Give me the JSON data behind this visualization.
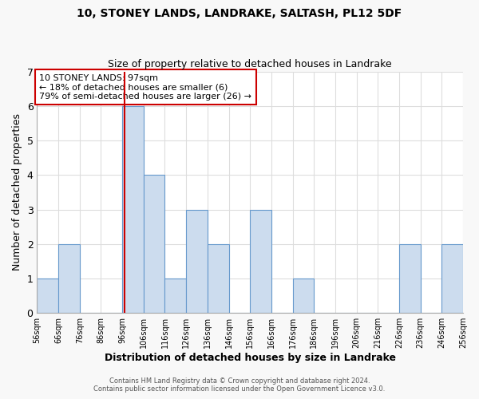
{
  "title": "10, STONEY LANDS, LANDRAKE, SALTASH, PL12 5DF",
  "subtitle": "Size of property relative to detached houses in Landrake",
  "xlabel": "Distribution of detached houses by size in Landrake",
  "ylabel": "Number of detached properties",
  "bin_edges": [
    56,
    66,
    76,
    86,
    96,
    106,
    116,
    126,
    136,
    146,
    156,
    166,
    176,
    186,
    196,
    206,
    216,
    226,
    236,
    246,
    256
  ],
  "counts": [
    1,
    2,
    0,
    0,
    6,
    4,
    1,
    3,
    2,
    0,
    3,
    0,
    1,
    0,
    0,
    0,
    0,
    2,
    0,
    2
  ],
  "bar_color": "#ccdcee",
  "bar_edgecolor": "#6699cc",
  "property_size": 97,
  "vline_color": "#cc0000",
  "annotation_text": "10 STONEY LANDS: 97sqm\n← 18% of detached houses are smaller (6)\n79% of semi-detached houses are larger (26) →",
  "annotation_boxcolor": "white",
  "annotation_edgecolor": "#cc0000",
  "ylim": [
    0,
    7
  ],
  "yticks": [
    0,
    1,
    2,
    3,
    4,
    5,
    6,
    7
  ],
  "tick_labels": [
    "56sqm",
    "66sqm",
    "76sqm",
    "86sqm",
    "96sqm",
    "106sqm",
    "116sqm",
    "126sqm",
    "136sqm",
    "146sqm",
    "156sqm",
    "166sqm",
    "176sqm",
    "186sqm",
    "196sqm",
    "206sqm",
    "216sqm",
    "226sqm",
    "236sqm",
    "246sqm",
    "256sqm"
  ],
  "footer1": "Contains HM Land Registry data © Crown copyright and database right 2024.",
  "footer2": "Contains public sector information licensed under the Open Government Licence v3.0.",
  "plot_bg": "#ffffff",
  "fig_bg": "#f8f8f8",
  "grid_color": "#dddddd"
}
